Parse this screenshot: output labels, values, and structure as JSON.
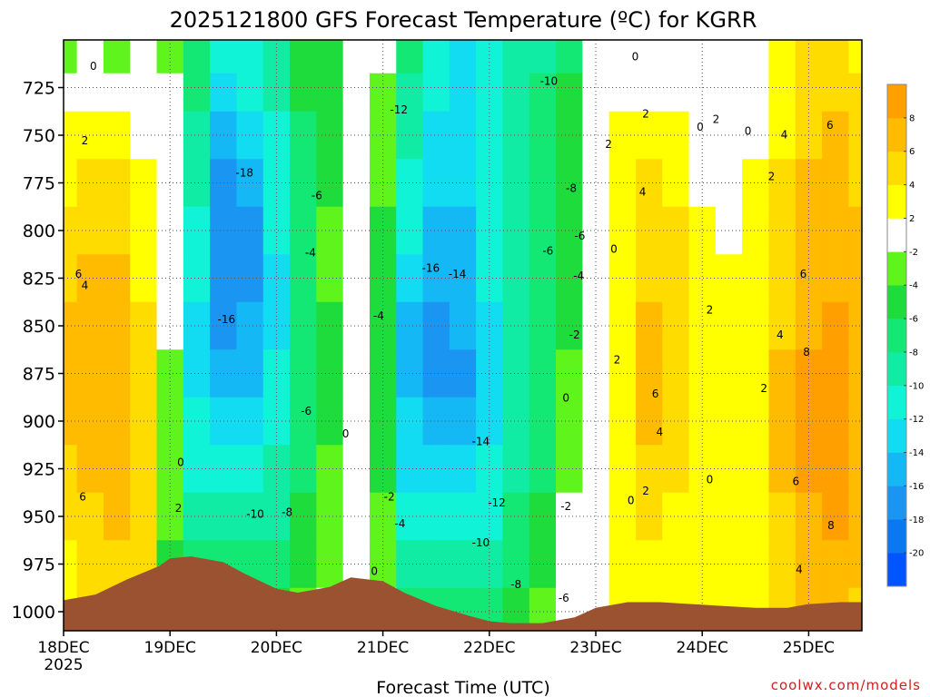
{
  "chart_data": {
    "type": "heatmap",
    "title": "2025121800 GFS Forecast Temperature (ºC) for KGRR",
    "xlabel": "Forecast Time (UTC)",
    "ylabel": "",
    "credit": "coolwx.com/models",
    "x_range": [
      "2025-12-18T00",
      "2025-12-25T12"
    ],
    "x_ticks": [
      {
        "label": "18DEC",
        "sub": "2025",
        "date": "2025-12-18T00"
      },
      {
        "label": "19DEC",
        "sub": "",
        "date": "2025-12-19T00"
      },
      {
        "label": "20DEC",
        "sub": "",
        "date": "2025-12-20T00"
      },
      {
        "label": "21DEC",
        "sub": "",
        "date": "2025-12-21T00"
      },
      {
        "label": "22DEC",
        "sub": "",
        "date": "2025-12-22T00"
      },
      {
        "label": "23DEC",
        "sub": "",
        "date": "2025-12-23T00"
      },
      {
        "label": "24DEC",
        "sub": "",
        "date": "2025-12-24T00"
      },
      {
        "label": "25DEC",
        "sub": "",
        "date": "2025-12-25T00"
      }
    ],
    "y_axis": {
      "reversed": true,
      "range_hPa": [
        700,
        1010
      ],
      "ticks": [
        725,
        750,
        775,
        800,
        825,
        850,
        875,
        900,
        925,
        950,
        975,
        1000
      ]
    },
    "grid": "dotted",
    "colorbar": {
      "placement": "right",
      "bins": [
        {
          "from": -22,
          "to": -20,
          "color": "#0055ff"
        },
        {
          "from": -20,
          "to": -18,
          "color": "#0a78f0"
        },
        {
          "from": -18,
          "to": -16,
          "color": "#1a96f2"
        },
        {
          "from": -16,
          "to": -14,
          "color": "#14b8f5"
        },
        {
          "from": -14,
          "to": -12,
          "color": "#12dcf2"
        },
        {
          "from": -12,
          "to": -10,
          "color": "#11f3d6"
        },
        {
          "from": -10,
          "to": -8,
          "color": "#11eca4"
        },
        {
          "from": -8,
          "to": -6,
          "color": "#14e874"
        },
        {
          "from": -6,
          "to": -4,
          "color": "#1ddc3c"
        },
        {
          "from": -4,
          "to": -2,
          "color": "#5ff41c"
        },
        {
          "from": -2,
          "to": 2,
          "color": "#ffffff"
        },
        {
          "from": 2,
          "to": 4,
          "color": "#ffff00"
        },
        {
          "from": 4,
          "to": 6,
          "color": "#ffdc00"
        },
        {
          "from": 6,
          "to": 8,
          "color": "#ffbb00"
        },
        {
          "from": 8,
          "to": 10,
          "color": "#ff9f00"
        }
      ],
      "tick_labels": [
        "-20",
        "-18",
        "-16",
        "-14",
        "-12",
        "-10",
        "-8",
        "-6",
        "-4",
        "-2",
        "2",
        "4",
        "6",
        "8"
      ],
      "tick_values": [
        -20,
        -18,
        -16,
        -14,
        -12,
        -10,
        -8,
        -6,
        -4,
        -2,
        2,
        4,
        6,
        8
      ]
    },
    "levels_hPa": [
      710,
      725,
      750,
      775,
      800,
      825,
      850,
      875,
      900,
      925,
      950,
      975,
      1000
    ],
    "times": [
      "2025-12-18T00",
      "2025-12-18T06",
      "2025-12-18T12",
      "2025-12-18T18",
      "2025-12-19T00",
      "2025-12-19T06",
      "2025-12-19T12",
      "2025-12-19T18",
      "2025-12-20T00",
      "2025-12-20T06",
      "2025-12-20T12",
      "2025-12-20T18",
      "2025-12-21T00",
      "2025-12-21T06",
      "2025-12-21T12",
      "2025-12-21T18",
      "2025-12-22T00",
      "2025-12-22T06",
      "2025-12-22T12",
      "2025-12-22T18",
      "2025-12-23T00",
      "2025-12-23T06",
      "2025-12-23T12",
      "2025-12-23T18",
      "2025-12-24T00",
      "2025-12-24T06",
      "2025-12-24T12",
      "2025-12-24T18",
      "2025-12-25T00",
      "2025-12-25T06",
      "2025-12-25T12"
    ],
    "temperature_C": [
      [
        -3,
        -1,
        -3,
        -1,
        -3,
        -7,
        -12,
        -12,
        -10,
        -6,
        -5,
        -1,
        -2,
        -8,
        -12,
        -13,
        -12,
        -10,
        -9,
        -7,
        -2,
        1,
        1,
        0,
        -1,
        0,
        0,
        3,
        4,
        4,
        3
      ],
      [
        1,
        0,
        0,
        0,
        -2,
        -8,
        -13,
        -12,
        -10,
        -6,
        -5,
        0,
        -3,
        -9,
        -12,
        -13,
        -12,
        -10,
        -8,
        -6,
        -2,
        1,
        1,
        1,
        0,
        -1,
        1,
        3,
        4,
        4,
        4
      ],
      [
        2,
        3,
        2,
        1,
        -2,
        -10,
        -15,
        -14,
        -11,
        -7,
        -5,
        -1,
        -4,
        -10,
        -13,
        -13,
        -12,
        -10,
        -8,
        -6,
        -1,
        2,
        3,
        2,
        1,
        0,
        1,
        3,
        5,
        6,
        5
      ],
      [
        3,
        4,
        4,
        2,
        -2,
        -10,
        -17,
        -16,
        -12,
        -7,
        -5,
        -1,
        -4,
        -11,
        -14,
        -14,
        -12,
        -10,
        -8,
        -6,
        0,
        2,
        4,
        3,
        1,
        0,
        2,
        4,
        6,
        6,
        5
      ],
      [
        4,
        5,
        5,
        2,
        -2,
        -11,
        -18,
        -17,
        -12,
        -7,
        -4,
        -1,
        -5,
        -12,
        -15,
        -15,
        -12,
        -9,
        -7,
        -6,
        0,
        2,
        4,
        4,
        2,
        1,
        2,
        4,
        6,
        7,
        6
      ],
      [
        5,
        6,
        6,
        3,
        -2,
        -12,
        -18,
        -17,
        -13,
        -7,
        -4,
        0,
        -5,
        -13,
        -16,
        -15,
        -12,
        -9,
        -7,
        -5,
        0,
        2,
        5,
        4,
        2,
        2,
        3,
        4,
        7,
        7,
        6
      ],
      [
        6,
        7,
        7,
        4,
        -2,
        -13,
        -17,
        -16,
        -13,
        -7,
        -5,
        0,
        -6,
        -15,
        -17,
        -16,
        -13,
        -9,
        -7,
        -5,
        1,
        3,
        6,
        5,
        3,
        2,
        3,
        5,
        7,
        8,
        7
      ],
      [
        6,
        7,
        7,
        4,
        -3,
        -13,
        -16,
        -15,
        -12,
        -7,
        -5,
        1,
        -6,
        -15,
        -18,
        -17,
        -13,
        -9,
        -7,
        -4,
        1,
        3,
        6,
        5,
        3,
        3,
        3,
        6,
        8,
        8,
        7
      ],
      [
        6,
        7,
        7,
        4,
        -3,
        -12,
        -14,
        -14,
        -11,
        -7,
        -5,
        1,
        -6,
        -14,
        -16,
        -15,
        -13,
        -9,
        -7,
        -3,
        1,
        3,
        6,
        5,
        3,
        3,
        3,
        6,
        8,
        8,
        7
      ],
      [
        5,
        6,
        6,
        4,
        -3,
        -11,
        -12,
        -12,
        -10,
        -7,
        -4,
        1,
        -5,
        -13,
        -14,
        -14,
        -12,
        -9,
        -7,
        -3,
        1,
        3,
        5,
        4,
        3,
        3,
        3,
        6,
        8,
        8,
        7
      ],
      [
        4,
        5,
        6,
        4,
        -4,
        -9,
        -10,
        -10,
        -9,
        -6,
        -4,
        0,
        -4,
        -11,
        -12,
        -12,
        -11,
        -8,
        -6,
        -2,
        1,
        2,
        4,
        3,
        2,
        2,
        3,
        5,
        7,
        8,
        6
      ],
      [
        3,
        4,
        5,
        5,
        -5,
        -7,
        -8,
        -8,
        -7,
        -5,
        -3,
        0,
        -3,
        -10,
        -10,
        -10,
        -9,
        -7,
        -5,
        -2,
        1,
        2,
        3,
        3,
        2,
        2,
        3,
        5,
        7,
        7,
        6
      ],
      [
        3,
        4,
        5,
        6,
        -5,
        -6,
        -6,
        -6,
        -5,
        -4,
        -2,
        0,
        -2,
        -8,
        -8,
        -8,
        -7,
        -6,
        -4,
        -1,
        1,
        2,
        3,
        3,
        2,
        2,
        3,
        5,
        6,
        6,
        5
      ]
    ],
    "contour_labels": [
      {
        "text": "0",
        "t": 0.28,
        "p": 714
      },
      {
        "text": "2",
        "t": 0.2,
        "p": 753
      },
      {
        "text": "6",
        "t": 0.14,
        "p": 823
      },
      {
        "text": "4",
        "t": 0.2,
        "p": 829
      },
      {
        "text": "6",
        "t": 0.18,
        "p": 940
      },
      {
        "text": "0",
        "t": 1.1,
        "p": 922
      },
      {
        "text": "2",
        "t": 1.08,
        "p": 946
      },
      {
        "text": "-18",
        "t": 1.7,
        "p": 770
      },
      {
        "text": "-16",
        "t": 1.53,
        "p": 847
      },
      {
        "text": "-10",
        "t": 1.8,
        "p": 949
      },
      {
        "text": "-8",
        "t": 2.1,
        "p": 948
      },
      {
        "text": "-6",
        "t": 2.38,
        "p": 782
      },
      {
        "text": "-4",
        "t": 2.32,
        "p": 812
      },
      {
        "text": "-6",
        "t": 2.28,
        "p": 895
      },
      {
        "text": "0",
        "t": 2.65,
        "p": 907
      },
      {
        "text": "0",
        "t": 2.92,
        "p": 979
      },
      {
        "text": "-12",
        "t": 3.15,
        "p": 737
      },
      {
        "text": "-4",
        "t": 2.96,
        "p": 845
      },
      {
        "text": "-2",
        "t": 3.06,
        "p": 940
      },
      {
        "text": "-4",
        "t": 3.16,
        "p": 954
      },
      {
        "text": "-16",
        "t": 3.45,
        "p": 820
      },
      {
        "text": "-14",
        "t": 3.7,
        "p": 823
      },
      {
        "text": "-14",
        "t": 3.92,
        "p": 911
      },
      {
        "text": "-12",
        "t": 4.07,
        "p": 943
      },
      {
        "text": "-10",
        "t": 3.92,
        "p": 964
      },
      {
        "text": "-8",
        "t": 4.25,
        "p": 986
      },
      {
        "text": "-10",
        "t": 4.56,
        "p": 722
      },
      {
        "text": "-8",
        "t": 4.77,
        "p": 778
      },
      {
        "text": "-6",
        "t": 4.55,
        "p": 811
      },
      {
        "text": "-6",
        "t": 4.85,
        "p": 803
      },
      {
        "text": "0",
        "t": 5.17,
        "p": 810
      },
      {
        "text": "-4",
        "t": 4.84,
        "p": 824
      },
      {
        "text": "-2",
        "t": 4.8,
        "p": 855
      },
      {
        "text": "2",
        "t": 5.2,
        "p": 868
      },
      {
        "text": "0",
        "t": 4.72,
        "p": 888
      },
      {
        "text": "-2",
        "t": 4.72,
        "p": 945
      },
      {
        "text": "-6",
        "t": 4.7,
        "p": 993
      },
      {
        "text": "2",
        "t": 5.12,
        "p": 755
      },
      {
        "text": "0",
        "t": 5.37,
        "p": 709
      },
      {
        "text": "2",
        "t": 5.47,
        "p": 739
      },
      {
        "text": "4",
        "t": 5.44,
        "p": 780
      },
      {
        "text": "6",
        "t": 5.56,
        "p": 886
      },
      {
        "text": "4",
        "t": 5.6,
        "p": 906
      },
      {
        "text": "2",
        "t": 5.47,
        "p": 937
      },
      {
        "text": "0",
        "t": 5.33,
        "p": 942
      },
      {
        "text": "2",
        "t": 6.13,
        "p": 742
      },
      {
        "text": "0",
        "t": 5.98,
        "p": 746
      },
      {
        "text": "0",
        "t": 6.43,
        "p": 748
      },
      {
        "text": "2",
        "t": 6.07,
        "p": 842
      },
      {
        "text": "0",
        "t": 6.07,
        "p": 931
      },
      {
        "text": "2",
        "t": 6.65,
        "p": 772
      },
      {
        "text": "4",
        "t": 6.77,
        "p": 750
      },
      {
        "text": "6",
        "t": 7.2,
        "p": 745
      },
      {
        "text": "6",
        "t": 6.95,
        "p": 823
      },
      {
        "text": "4",
        "t": 6.73,
        "p": 855
      },
      {
        "text": "2",
        "t": 6.58,
        "p": 883
      },
      {
        "text": "8",
        "t": 6.98,
        "p": 864
      },
      {
        "text": "6",
        "t": 6.88,
        "p": 932
      },
      {
        "text": "8",
        "t": 7.21,
        "p": 955
      },
      {
        "text": "4",
        "t": 6.91,
        "p": 978
      }
    ],
    "surface": {
      "t": [
        0,
        0.3,
        0.6,
        0.9,
        1.0,
        1.2,
        1.5,
        1.7,
        2.0,
        2.2,
        2.5,
        2.7,
        3.0,
        3.2,
        3.5,
        3.8,
        4.0,
        4.2,
        4.5,
        4.8,
        5.0,
        5.3,
        5.6,
        5.9,
        6.2,
        6.5,
        6.8,
        7.0,
        7.3,
        7.5
      ],
      "p_hPa": [
        994,
        991,
        983,
        976,
        972,
        971,
        974,
        980,
        988,
        990,
        987,
        982,
        984,
        990,
        997,
        1002,
        1005,
        1006,
        1006,
        1003,
        998,
        995,
        995,
        996,
        997,
        998,
        998,
        996,
        995,
        995
      ]
    }
  }
}
